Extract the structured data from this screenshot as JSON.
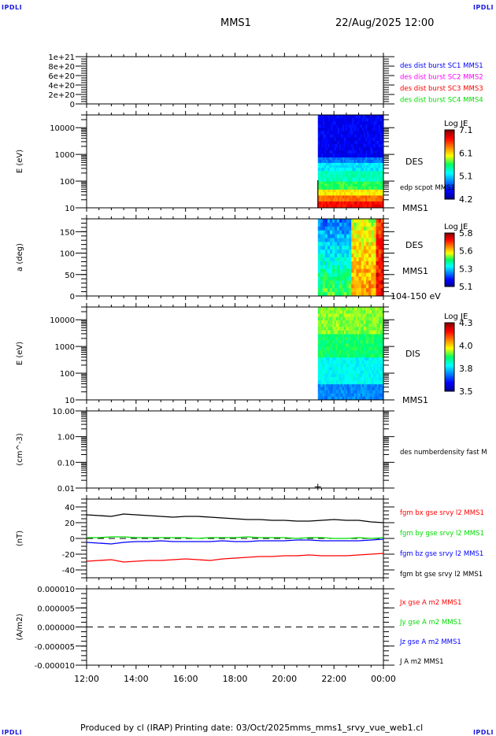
{
  "header": {
    "corner_tag": "IPDLI",
    "spacecraft": "MMS1",
    "start_time": "22/Aug/2025 12:00"
  },
  "footer": {
    "produced_by": "Produced by cl (IRAP)",
    "printing_date": "Printing date: 03/Oct/2025",
    "script_name": "mms_mms1_srvy_vue_web1.cl"
  },
  "chart_data": [
    {
      "id": "burst",
      "type": "line",
      "ylabel": "",
      "yscale": "linear",
      "ylim": [
        0,
        1e+21
      ],
      "yticks": [
        "0",
        "2e+20",
        "4e+20",
        "6e+20",
        "8e+20",
        "1e+21"
      ],
      "ytick_values": [
        0,
        2e+20,
        4e+20,
        6e+20,
        8e+20,
        1e+21
      ],
      "zero_line": true,
      "legend": [
        {
          "label": "des dist burst SC1 MMS1",
          "color": "#0000ff"
        },
        {
          "label": "des dist burst SC2 MMS2",
          "color": "#ff00ff"
        },
        {
          "label": "des dist burst SC3 MMS3",
          "color": "#ff0000"
        },
        {
          "label": "des dist burst SC4 MMS4",
          "color": "#00dd00"
        }
      ],
      "series": []
    },
    {
      "id": "des-energy",
      "type": "heatmap",
      "ylabel": "E (eV)",
      "yscale": "log",
      "ylim": [
        10,
        30000
      ],
      "yticks": [
        "10",
        "100",
        "1000",
        "10000"
      ],
      "ytick_values": [
        10,
        100,
        1000,
        10000
      ],
      "side_labels": [
        "DES",
        "edp scpot MMS1",
        "MMS1"
      ],
      "colorbar": {
        "title": "Log JE",
        "ticks": [
          "4.2",
          "5.1",
          "6.1",
          "7.1"
        ],
        "range": [
          4.2,
          7.3
        ]
      },
      "data_start_hour": 21.35,
      "bands": [
        {
          "e_lo": 10,
          "e_hi": 18,
          "value": 6.9
        },
        {
          "e_lo": 18,
          "e_hi": 30,
          "value": 6.6
        },
        {
          "e_lo": 30,
          "e_hi": 50,
          "value": 6.2
        },
        {
          "e_lo": 50,
          "e_hi": 100,
          "value": 5.8
        },
        {
          "e_lo": 100,
          "e_hi": 250,
          "value": 5.55
        },
        {
          "e_lo": 250,
          "e_hi": 500,
          "value": 5.3
        },
        {
          "e_lo": 500,
          "e_hi": 800,
          "value": 4.95
        },
        {
          "e_lo": 800,
          "e_hi": 30000,
          "value": 4.55
        }
      ]
    },
    {
      "id": "des-pitch",
      "type": "heatmap",
      "ylabel": "a (deg)",
      "yscale": "linear",
      "ylim": [
        0,
        180
      ],
      "yticks": [
        "0",
        "50",
        "100",
        "150"
      ],
      "ytick_values": [
        0,
        50,
        100,
        150
      ],
      "side_labels": [
        "DES",
        "MMS1",
        "104-150 eV"
      ],
      "colorbar": {
        "title": "Log JE",
        "ticks": [
          "5.1",
          "5.3",
          "5.6",
          "5.8"
        ],
        "range": [
          5.1,
          5.85
        ]
      },
      "data_start_hour": 21.35,
      "segments": [
        {
          "h_lo": 21.35,
          "h_hi": 22.7,
          "upper_value": 5.28,
          "lower_value": 5.5
        },
        {
          "h_lo": 22.7,
          "h_hi": 23.7,
          "upper_value": 5.55,
          "lower_value": 5.65
        },
        {
          "h_lo": 23.7,
          "h_hi": 24.0,
          "upper_value": 5.7,
          "lower_value": 5.78
        }
      ]
    },
    {
      "id": "dis-energy",
      "type": "heatmap",
      "ylabel": "E (eV)",
      "yscale": "log",
      "ylim": [
        10,
        30000
      ],
      "yticks": [
        "10",
        "100",
        "1000",
        "10000"
      ],
      "ytick_values": [
        10,
        100,
        1000,
        10000
      ],
      "side_labels": [
        "DIS",
        "MMS1"
      ],
      "colorbar": {
        "title": "Log JE",
        "ticks": [
          "3.5",
          "3.8",
          "4.0",
          "4.3"
        ],
        "range": [
          3.5,
          4.35
        ]
      },
      "data_start_hour": 21.35,
      "bands": [
        {
          "e_lo": 10,
          "e_hi": 40,
          "value": 3.72
        },
        {
          "e_lo": 40,
          "e_hi": 400,
          "value": 3.82
        },
        {
          "e_lo": 400,
          "e_hi": 3000,
          "value": 3.92
        },
        {
          "e_lo": 3000,
          "e_hi": 30000,
          "value": 3.98
        }
      ]
    },
    {
      "id": "density",
      "type": "scatter",
      "ylabel": "(cm^-3)",
      "yscale": "log",
      "ylim": [
        0.01,
        10
      ],
      "yticks": [
        "0.01",
        "0.10",
        "1.00",
        "10.00"
      ],
      "ytick_values": [
        0.01,
        0.1,
        1,
        10
      ],
      "legend": [
        {
          "label": "des numberdensity fast M",
          "color": "#000000"
        }
      ],
      "points": [
        {
          "hour": 21.35,
          "value": 0.011
        }
      ]
    },
    {
      "id": "fgm",
      "type": "line",
      "ylabel": "(nT)",
      "yscale": "linear",
      "ylim": [
        -50,
        50
      ],
      "yticks": [
        "-40",
        "-20",
        "0",
        "20",
        "40"
      ],
      "ytick_values": [
        -40,
        -20,
        0,
        20,
        40
      ],
      "zero_line": true,
      "legend": [
        {
          "label": "fgm bx gse srvy l2 MMS1",
          "color": "#ff0000"
        },
        {
          "label": "fgm by gse srvy l2 MMS1",
          "color": "#00dd00"
        },
        {
          "label": "fgm bz gse srvy l2 MMS1",
          "color": "#0000ff"
        },
        {
          "label": "fgm bt gse srvy l2 MMS1",
          "color": "#000000"
        }
      ],
      "x_hours": [
        12,
        12.5,
        13,
        13.5,
        14,
        14.5,
        15,
        15.5,
        16,
        16.5,
        17,
        17.5,
        18,
        18.5,
        19,
        19.5,
        20,
        20.5,
        21,
        21.5,
        22,
        22.5,
        23,
        23.5,
        24
      ],
      "series": [
        {
          "name": "bt",
          "color": "#000000",
          "values": [
            30,
            29,
            28,
            31,
            30,
            29,
            28,
            27,
            28,
            28,
            27,
            26,
            25,
            24,
            24,
            23,
            23,
            22,
            22,
            23,
            24,
            23,
            23,
            21,
            20
          ]
        },
        {
          "name": "by",
          "color": "#00dd00",
          "values": [
            1,
            1,
            2,
            2,
            1,
            1,
            1,
            1,
            1,
            0,
            1,
            1,
            1,
            2,
            1,
            1,
            1,
            0,
            1,
            1,
            0,
            0,
            1,
            0,
            1
          ]
        },
        {
          "name": "bz",
          "color": "#0000ff",
          "values": [
            -5,
            -6,
            -7,
            -5,
            -4,
            -4,
            -3,
            -4,
            -4,
            -4,
            -4,
            -3,
            -4,
            -4,
            -3,
            -3,
            -3,
            -2,
            -2,
            -3,
            -3,
            -3,
            -3,
            -2,
            -1
          ]
        },
        {
          "name": "bx",
          "color": "#ff0000",
          "values": [
            -29,
            -28,
            -27,
            -30,
            -29,
            -28,
            -28,
            -27,
            -26,
            -27,
            -28,
            -26,
            -25,
            -24,
            -23,
            -23,
            -22,
            -22,
            -21,
            -22,
            -22,
            -22,
            -21,
            -20,
            -19
          ]
        }
      ]
    },
    {
      "id": "current",
      "type": "line",
      "ylabel": "(A/m2)",
      "yscale": "linear",
      "ylim": [
        -1e-05,
        1e-05
      ],
      "yticks": [
        "-0.000010",
        "-0.000005",
        "0.000000",
        "0.000005",
        "0.000010"
      ],
      "ytick_values": [
        -1e-05,
        -5e-06,
        0,
        5e-06,
        1e-05
      ],
      "zero_line": true,
      "legend": [
        {
          "label": "Jx gse A m2 MMS1",
          "color": "#ff0000"
        },
        {
          "label": "Jy gse A m2 MMS1",
          "color": "#00dd00"
        },
        {
          "label": "Jz gse A m2 MMS1",
          "color": "#0000ff"
        },
        {
          "label": "J A m2 MMS1",
          "color": "#000000"
        }
      ],
      "series": []
    }
  ],
  "time_axis": {
    "range_hours": [
      12,
      24
    ],
    "tick_labels": [
      "12:00",
      "14:00",
      "16:00",
      "18:00",
      "20:00",
      "22:00",
      "00:00"
    ],
    "tick_hours": [
      12,
      14,
      16,
      18,
      20,
      22,
      24
    ]
  }
}
